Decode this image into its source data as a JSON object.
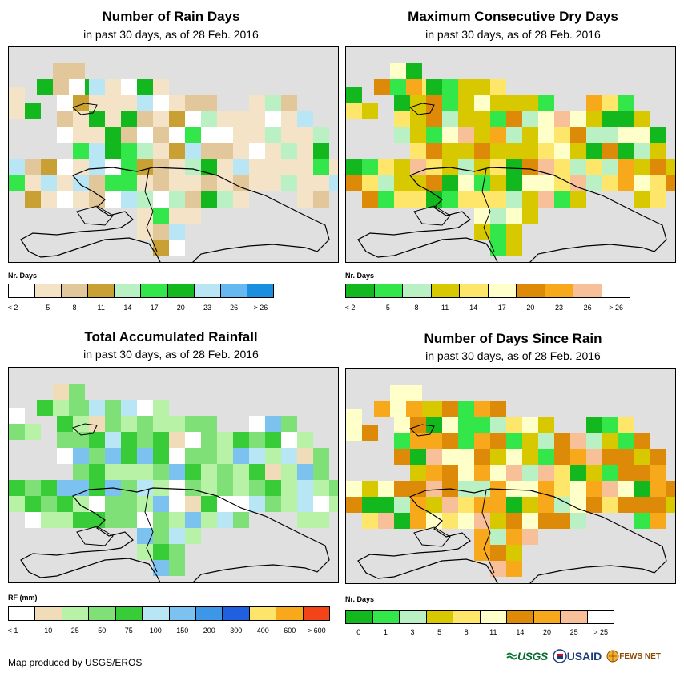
{
  "panels": [
    {
      "title": "Number of Rain Days",
      "subtitle": "in past 30 days, as of 28 Feb. 2016",
      "legend_title": "Nr. Days",
      "legend_colors": [
        "#ffffff",
        "#f5e3c8",
        "#e2c79a",
        "#c9a033",
        "#b9f1c4",
        "#33e64a",
        "#12b81e",
        "#b8e6f5",
        "#66b8f0",
        "#1a8fe0"
      ],
      "legend_labels": [
        "< 2",
        "5",
        "8",
        "11",
        "14",
        "17",
        "20",
        "23",
        "26",
        "> 26"
      ],
      "label_mode": "center"
    },
    {
      "title": "Maximum Consecutive Dry Days",
      "subtitle": "in past 30 days, as of 28 Feb. 2016",
      "legend_title": "Nr. Days",
      "legend_colors": [
        "#12b81e",
        "#33e64a",
        "#b9f1c4",
        "#d8c800",
        "#fde66a",
        "#ffffc9",
        "#dd8a08",
        "#f7a81b",
        "#f8c098",
        "#ffffff"
      ],
      "legend_labels": [
        "< 2",
        "5",
        "8",
        "11",
        "14",
        "17",
        "20",
        "23",
        "26",
        "> 26"
      ],
      "label_mode": "center"
    },
    {
      "title": "Total Accumulated Rainfall",
      "subtitle": "in past 30 days, as of 28 Feb. 2016",
      "legend_title": "RF (mm)",
      "legend_colors": [
        "#ffffff",
        "#f0dcb9",
        "#b7f2a6",
        "#7ee077",
        "#38cc38",
        "#b8e6f5",
        "#7cc2f0",
        "#3d96e6",
        "#1f5fe0",
        "#fde56b",
        "#f7a81b",
        "#f24418"
      ],
      "legend_labels": [
        "< 1",
        "10",
        "25",
        "50",
        "75",
        "100",
        "150",
        "200",
        "300",
        "400",
        "600",
        "> 600"
      ],
      "label_mode": "center"
    },
    {
      "title": "Number of Days Since Rain",
      "subtitle": "in past 30 days, as of 28 Feb. 2016",
      "legend_title": "Nr. Days",
      "legend_colors": [
        "#12b81e",
        "#33e64a",
        "#b9f1c4",
        "#d8c800",
        "#fde66a",
        "#ffffc9",
        "#dd8a08",
        "#f7a81b",
        "#f8c098",
        "#ffffff"
      ],
      "legend_labels": [
        "0",
        "1",
        "3",
        "5",
        "8",
        "11",
        "14",
        "20",
        "25",
        "> 25"
      ],
      "label_mode": "boundary"
    }
  ],
  "credit": "Map produced by USGS/EROS",
  "logos": {
    "usgs": "USGS",
    "usaid": "USAID",
    "fewsnet": "FEWS NET"
  }
}
